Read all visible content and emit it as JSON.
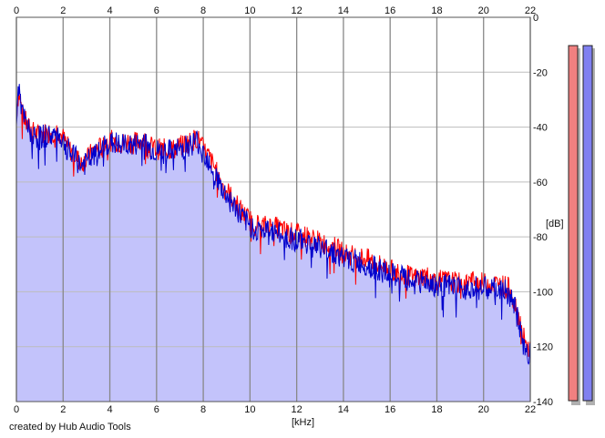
{
  "credit": "created by Hub Audio Tools",
  "colors": {
    "background": "#ffffff",
    "plot_bg": "#ffffff",
    "grid_major": "#888888",
    "grid_minor": "#bdbdbd",
    "fill": "#c3c3fb",
    "left_channel": "#ff0000",
    "right_channel": "#0000cc",
    "left_meter": "#f08080",
    "right_meter": "#8080f0",
    "meter_shadow": "#b0b0b0"
  },
  "chart_data": {
    "type": "area",
    "title": "",
    "xlabel": "[kHz]",
    "ylabel": "[dB]",
    "xlim": [
      0,
      22
    ],
    "ylim": [
      -140,
      0
    ],
    "x_ticks": [
      "0",
      "2",
      "4",
      "6",
      "8",
      "10",
      "12",
      "14",
      "16",
      "18",
      "20",
      "22"
    ],
    "y_ticks": [
      "0",
      "-20",
      "-40",
      "-60",
      "-80",
      "-100",
      "-120",
      "-140"
    ],
    "grid": true,
    "series": [
      {
        "color": "red",
        "x": [
          0,
          0.1,
          0.25,
          0.5,
          0.75,
          1.0,
          1.25,
          1.5,
          1.75,
          2.0,
          2.25,
          2.5,
          2.75,
          3.0,
          3.25,
          3.5,
          3.75,
          4.0,
          4.25,
          4.5,
          4.75,
          5.0,
          5.25,
          5.5,
          5.75,
          6.0,
          6.25,
          6.5,
          6.75,
          7.0,
          7.25,
          7.5,
          7.75,
          8.0,
          8.25,
          8.5,
          8.75,
          9.0,
          9.25,
          9.5,
          9.75,
          10.0,
          10.5,
          11.0,
          11.5,
          12.0,
          12.5,
          13.0,
          13.5,
          14.0,
          14.5,
          15.0,
          15.5,
          16.0,
          16.5,
          17.0,
          17.5,
          18.0,
          18.5,
          19.0,
          19.5,
          20.0,
          20.5,
          21.0,
          21.2,
          21.4,
          21.6,
          21.8,
          22.0
        ],
        "values": [
          -35,
          -27,
          -35,
          -40,
          -42,
          -43,
          -42,
          -42,
          -41,
          -44,
          -48,
          -50,
          -53,
          -52,
          -49,
          -48,
          -46,
          -45,
          -45,
          -46,
          -45,
          -46,
          -45,
          -45,
          -47,
          -48,
          -48,
          -48,
          -48,
          -47,
          -46,
          -45,
          -44,
          -48,
          -51,
          -55,
          -60,
          -63,
          -66,
          -69,
          -72,
          -74,
          -76,
          -76,
          -78,
          -79,
          -80,
          -82,
          -83,
          -86,
          -87,
          -88,
          -90,
          -92,
          -93,
          -95,
          -94,
          -96,
          -96,
          -97,
          -96,
          -97,
          -97,
          -98,
          -100,
          -106,
          -112,
          -120,
          -121
        ]
      },
      {
        "color": "blue",
        "x": [
          0,
          0.1,
          0.25,
          0.5,
          0.75,
          1.0,
          1.25,
          1.5,
          1.75,
          2.0,
          2.25,
          2.5,
          2.75,
          3.0,
          3.25,
          3.5,
          3.75,
          4.0,
          4.25,
          4.5,
          4.75,
          5.0,
          5.25,
          5.5,
          5.75,
          6.0,
          6.25,
          6.5,
          6.75,
          7.0,
          7.25,
          7.5,
          7.75,
          8.0,
          8.25,
          8.5,
          8.75,
          9.0,
          9.25,
          9.5,
          9.75,
          10.0,
          10.5,
          11.0,
          11.5,
          12.0,
          12.5,
          13.0,
          13.5,
          14.0,
          14.5,
          15.0,
          15.5,
          16.0,
          16.5,
          17.0,
          17.5,
          18.0,
          18.5,
          19.0,
          19.5,
          20.0,
          20.5,
          21.0,
          21.2,
          21.4,
          21.6,
          21.8,
          22.0
        ],
        "values": [
          -36,
          -26,
          -35,
          -41,
          -43,
          -44,
          -43,
          -43,
          -42,
          -45,
          -49,
          -51,
          -54,
          -53,
          -51,
          -50,
          -47,
          -46,
          -46,
          -47,
          -46,
          -47,
          -46,
          -46,
          -48,
          -49,
          -49,
          -49,
          -49,
          -48,
          -47,
          -46,
          -45,
          -49,
          -52,
          -57,
          -62,
          -65,
          -68,
          -71,
          -74,
          -76,
          -78,
          -78,
          -80,
          -81,
          -82,
          -84,
          -85,
          -88,
          -89,
          -90,
          -92,
          -94,
          -95,
          -97,
          -96,
          -98,
          -98,
          -99,
          -98,
          -99,
          -99,
          -100,
          -102,
          -108,
          -115,
          -122,
          -123
        ]
      }
    ],
    "meters": [
      {
        "channel": "L",
        "level_db": -5
      },
      {
        "channel": "R",
        "level_db": -5
      }
    ]
  }
}
